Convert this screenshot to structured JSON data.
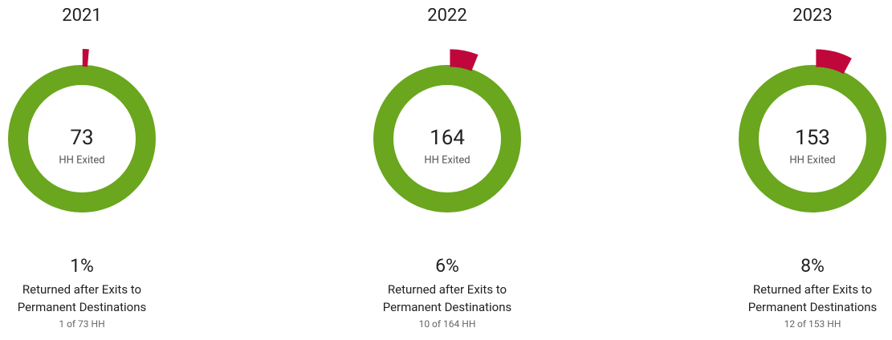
{
  "chart_data": [
    {
      "type": "donut",
      "title": "2021",
      "exited": 73,
      "returned": 1,
      "center_label": "HH Exited",
      "percent": "1%",
      "caption": [
        "Returned after Exits to",
        "Permanent Destinations"
      ],
      "detail": "1 of 73 HH",
      "colors": {
        "exited": "#6aa61e",
        "returned": "#c0073b"
      }
    },
    {
      "type": "donut",
      "title": "2022",
      "exited": 164,
      "returned": 10,
      "center_label": "HH Exited",
      "percent": "6%",
      "caption": [
        "Returned after Exits to",
        "Permanent Destinations"
      ],
      "detail": "10 of 164 HH",
      "colors": {
        "exited": "#6aa61e",
        "returned": "#c0073b"
      }
    },
    {
      "type": "donut",
      "title": "2023",
      "exited": 153,
      "returned": 12,
      "center_label": "HH Exited",
      "percent": "8%",
      "caption": [
        "Returned after Exits to",
        "Permanent Destinations"
      ],
      "detail": "12 of 153 HH",
      "colors": {
        "exited": "#6aa61e",
        "returned": "#c0073b"
      }
    }
  ]
}
